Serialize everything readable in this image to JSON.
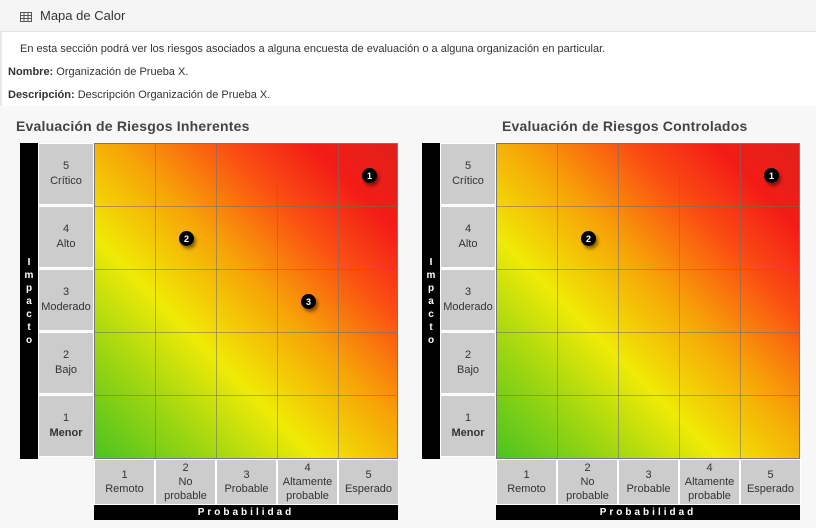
{
  "header": {
    "title": "Mapa de Calor",
    "icon": "table-icon"
  },
  "intro": "En esta sección podrá ver los riesgos asociados a alguna encuesta de evaluación o a alguna organización en particular.",
  "nombre": {
    "label": "Nombre:",
    "value": "Organización de Prueba X."
  },
  "descripcion": {
    "label": "Descripción:",
    "value": "Descripción Organización de Prueba X."
  },
  "axes": {
    "impact_letters": [
      "I",
      "m",
      "p",
      "a",
      "c",
      "t",
      "o"
    ],
    "probability": "Probabilidad",
    "rows": [
      {
        "n": "5",
        "t": "Crítico"
      },
      {
        "n": "4",
        "t": "Alto"
      },
      {
        "n": "3",
        "t": "Moderado"
      },
      {
        "n": "2",
        "t": "Bajo"
      },
      {
        "n": "1",
        "t": "Menor"
      }
    ],
    "cols": [
      {
        "n": "1",
        "t": "Remoto"
      },
      {
        "n": "2",
        "t": "No probable"
      },
      {
        "n": "3",
        "t": "Probable"
      },
      {
        "n": "4",
        "t": "Altamente probable"
      },
      {
        "n": "5",
        "t": "Esperado"
      }
    ]
  },
  "matrices": [
    {
      "title": "Evaluación de Riesgos Inherentes",
      "markers": [
        {
          "label": "1",
          "probabilidad": 5,
          "impacto": 5
        },
        {
          "label": "2",
          "probabilidad": 2,
          "impacto": 4
        },
        {
          "label": "3",
          "probabilidad": 4,
          "impacto": 3
        }
      ]
    },
    {
      "title": "Evaluación de Riesgos Controlados",
      "markers": [
        {
          "label": "1",
          "probabilidad": 5,
          "impacto": 5
        },
        {
          "label": "2",
          "probabilidad": 2,
          "impacto": 4
        }
      ]
    }
  ],
  "colors": {
    "header_bg": "#f5f5f5",
    "axis_bg": "#cccccc",
    "bar_bg": "#000000",
    "low": "#4cc321",
    "mid": "#f0ea06",
    "high": "#e0201a"
  }
}
